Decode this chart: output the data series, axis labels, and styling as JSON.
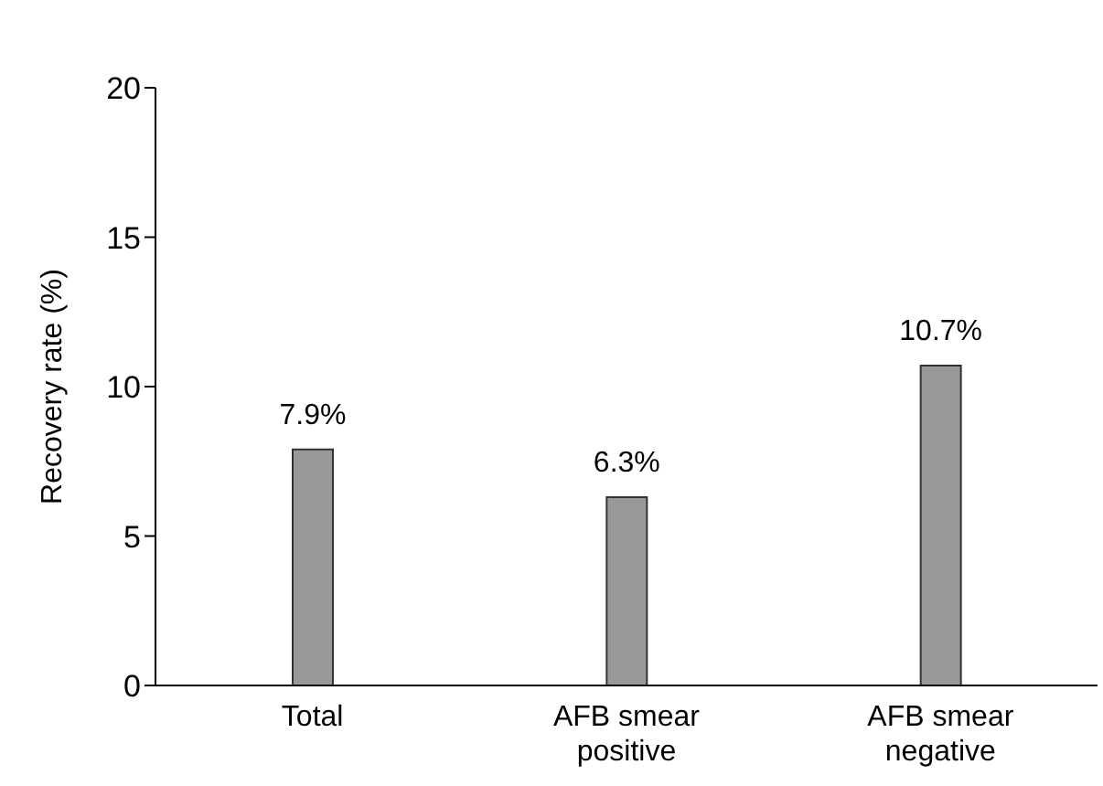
{
  "chart_data": {
    "type": "bar",
    "ylabel": "Recovery rate (%)",
    "categories": [
      "Total",
      "AFB smear positive",
      "AFB smear negative"
    ],
    "values": [
      7.9,
      6.3,
      10.7
    ],
    "value_labels": [
      "7.9%",
      "6.3%",
      "10.7%"
    ],
    "color": "#999999",
    "ylim": [
      0,
      20
    ],
    "yticks": [
      0,
      5,
      10,
      15,
      20
    ],
    "grid": false,
    "legend": false
  }
}
